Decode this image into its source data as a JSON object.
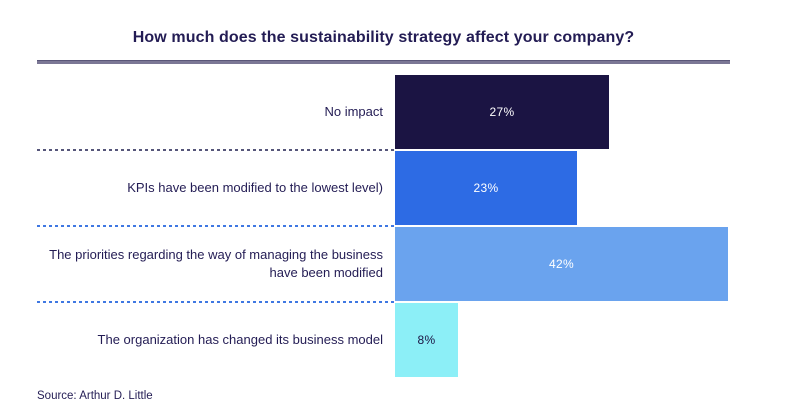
{
  "chart_data": {
    "type": "bar",
    "orientation": "horizontal",
    "title": "How much does the sustainability strategy affect your company?",
    "categories": [
      "No impact",
      "KPIs have been modified to the lowest level)",
      "The priorities regarding the way of managing the business have been modified",
      "The organization has changed its business model"
    ],
    "values": [
      27,
      23,
      42,
      8
    ],
    "value_labels": [
      "27%",
      "23%",
      "42%",
      "8%"
    ],
    "unit": "%",
    "xlim": [
      0,
      47
    ],
    "grid": "off",
    "legend": "none",
    "bar_colors": [
      "#1b1443",
      "#2d6be4",
      "#6aa3ee",
      "#8ceff7"
    ],
    "value_label_colors": [
      "#ffffff",
      "#ffffff",
      "#ffffff",
      "#1b1443"
    ],
    "accent_text_color": "#231c54",
    "separator_colors": [
      "#56567a",
      "#3f78e2",
      "#3f78e2"
    ],
    "source": "Source: Arthur D. Little"
  }
}
